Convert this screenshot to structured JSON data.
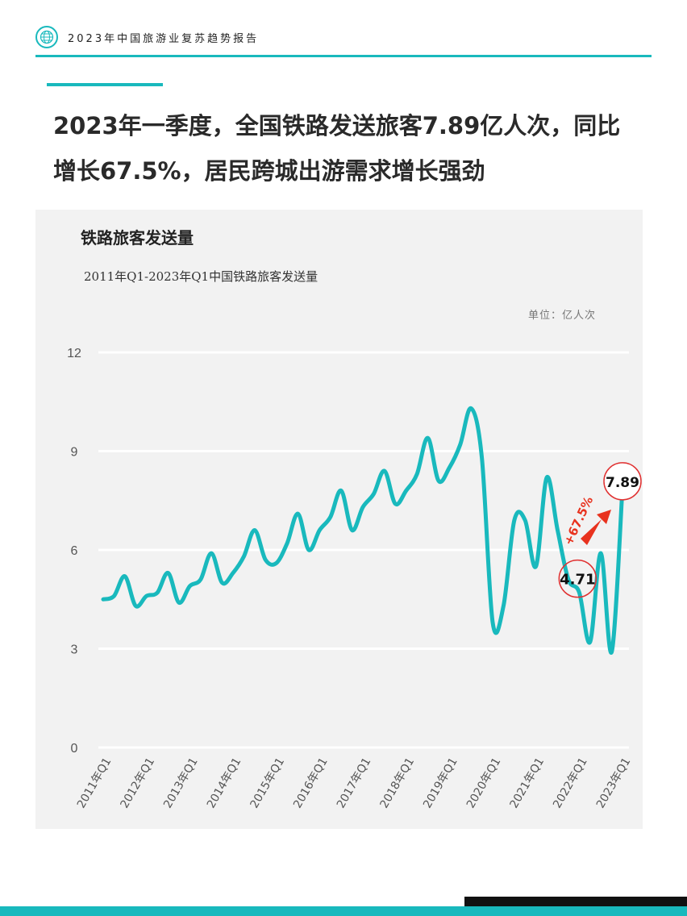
{
  "header": {
    "title": "2023年中国旅游业复苏趋势报告"
  },
  "headline": {
    "line1": "2023年一季度，全国铁路发送旅客7.89亿人次，同比",
    "line2": "增长67.5%，居民跨城出游需求增长强劲"
  },
  "chart_data": {
    "type": "line",
    "title": "铁路旅客发送量",
    "subtitle": "2011年Q1-2023年Q1中国铁路旅客发送量",
    "unit": "单位：亿人次",
    "ylim": [
      0,
      12
    ],
    "yticks": [
      "0",
      "3",
      "6",
      "9",
      "12"
    ],
    "grid": true,
    "xticklabels": [
      "2011年Q1",
      "2012年Q1",
      "2013年Q1",
      "2014年Q1",
      "2015年Q1",
      "2016年Q1",
      "2017年Q1",
      "2018年Q1",
      "2019年Q1",
      "2020年Q1",
      "2021年Q1",
      "2022年Q1",
      "2023年Q1"
    ],
    "x": [
      "2011Q1",
      "2011Q2",
      "2011Q3",
      "2011Q4",
      "2012Q1",
      "2012Q2",
      "2012Q3",
      "2012Q4",
      "2013Q1",
      "2013Q2",
      "2013Q3",
      "2013Q4",
      "2014Q1",
      "2014Q2",
      "2014Q3",
      "2014Q4",
      "2015Q1",
      "2015Q2",
      "2015Q3",
      "2015Q4",
      "2016Q1",
      "2016Q2",
      "2016Q3",
      "2016Q4",
      "2017Q1",
      "2017Q2",
      "2017Q3",
      "2017Q4",
      "2018Q1",
      "2018Q2",
      "2018Q3",
      "2018Q4",
      "2019Q1",
      "2019Q2",
      "2019Q3",
      "2019Q4",
      "2020Q1",
      "2020Q2",
      "2020Q3",
      "2020Q4",
      "2021Q1",
      "2021Q2",
      "2021Q3",
      "2021Q4",
      "2022Q1",
      "2022Q2",
      "2022Q3",
      "2022Q4",
      "2023Q1"
    ],
    "values": [
      4.5,
      4.6,
      5.2,
      4.3,
      4.6,
      4.7,
      5.3,
      4.4,
      4.9,
      5.1,
      5.9,
      5.0,
      5.3,
      5.8,
      6.6,
      5.7,
      5.6,
      6.2,
      7.1,
      6.0,
      6.6,
      7.0,
      7.8,
      6.6,
      7.3,
      7.7,
      8.4,
      7.4,
      7.8,
      8.3,
      9.4,
      8.1,
      8.5,
      9.2,
      10.3,
      8.8,
      3.8,
      4.3,
      6.9,
      6.9,
      5.5,
      8.2,
      6.6,
      5.1,
      4.71,
      3.2,
      5.9,
      2.9,
      7.89
    ],
    "color": "#19b9bd",
    "annotations": {
      "start_label": "4.71",
      "end_label": "7.89",
      "growth_label": "+67.5%",
      "circle_color": "#e03030",
      "arrow_color": "#e8321e"
    }
  }
}
